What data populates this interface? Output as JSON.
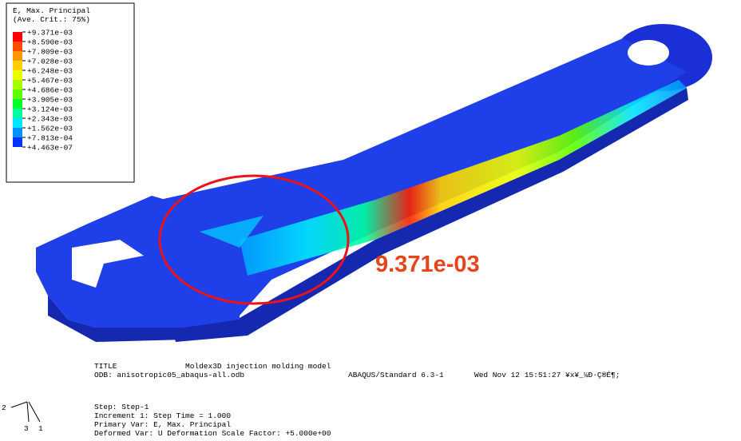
{
  "legend": {
    "title": [
      "E, Max. Principal",
      "(Ave. Crit.: 75%)"
    ],
    "labels": [
      "+9.371e-03",
      "+8.590e-03",
      "+7.809e-03",
      "+7.028e-03",
      "+6.248e-03",
      "+5.467e-03",
      "+4.686e-03",
      "+3.905e-03",
      "+3.124e-03",
      "+2.343e-03",
      "+1.562e-03",
      "+7.813e-04",
      "+4.463e-07"
    ],
    "colors": [
      "#ff0000",
      "#ff4a00",
      "#ff9500",
      "#ffd000",
      "#e8ff00",
      "#a6ff00",
      "#5cff00",
      "#00ff2a",
      "#00ff9c",
      "#00e5ff",
      "#0090ff",
      "#0033ff"
    ]
  },
  "annotation": "9.371e-03",
  "info": {
    "title_key": "TITLE",
    "title_value": "Moldex3D injection molding model",
    "odb": "ODB: anisotropic05_abaqus-all.odb",
    "solver": "ABAQUS/Standard 6.3-1",
    "date": "Wed Nov 12 15:51:27 ¥x¥_¼Ð·Ç®É¶;",
    "step": "Step: Step-1",
    "increment": "Increment      1: Step Time =     1.000",
    "primary": "Primary Var: E, Max. Principal",
    "deformed": "Deformed Var: U   Deformation Scale Factor: +5.000e+00"
  },
  "triad": {
    "axis_2": "2",
    "axis_3": "3",
    "axis_1": "1"
  }
}
